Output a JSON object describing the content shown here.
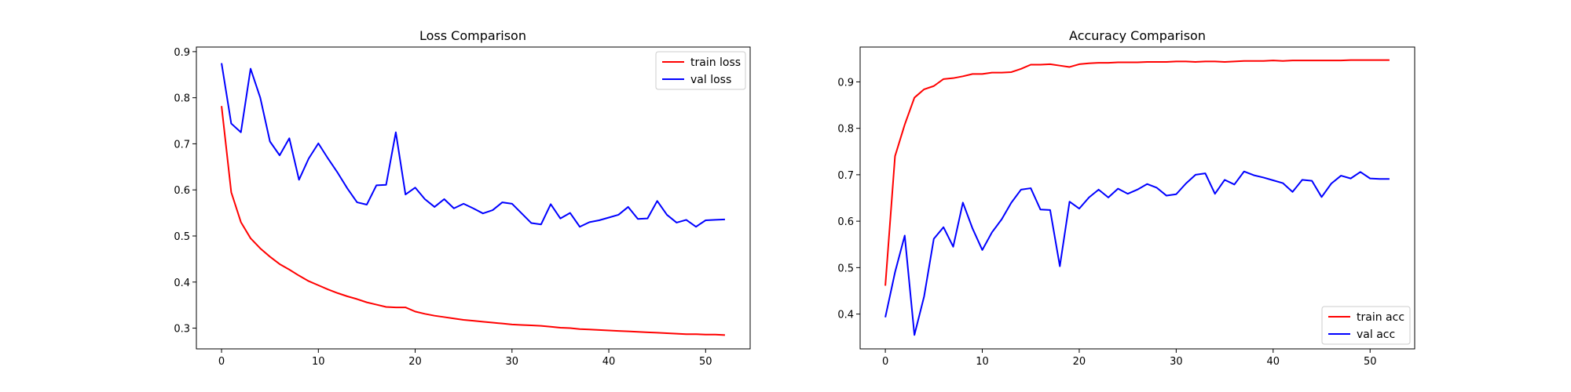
{
  "chart_data": [
    {
      "type": "line",
      "title": "Loss Comparison",
      "xlabel": "",
      "ylabel": "",
      "xlim": [
        -2.6,
        54.6
      ],
      "ylim": [
        0.255,
        0.91
      ],
      "xticks": [
        0,
        10,
        20,
        30,
        40,
        50
      ],
      "yticks": [
        0.3,
        0.4,
        0.5,
        0.6,
        0.7,
        0.8,
        0.9
      ],
      "ytick_labels": [
        "0.3",
        "0.4",
        "0.5",
        "0.6",
        "0.7",
        "0.8",
        "0.9"
      ],
      "grid": false,
      "legend_position": "top-right",
      "x": [
        0,
        1,
        2,
        3,
        4,
        5,
        6,
        7,
        8,
        9,
        10,
        11,
        12,
        13,
        14,
        15,
        16,
        17,
        18,
        19,
        20,
        21,
        22,
        23,
        24,
        25,
        26,
        27,
        28,
        29,
        30,
        31,
        32,
        33,
        34,
        35,
        36,
        37,
        38,
        39,
        40,
        41,
        42,
        43,
        44,
        45,
        46,
        47,
        48,
        49,
        50,
        51,
        52
      ],
      "series": [
        {
          "name": "train loss",
          "color": "#ff0000",
          "values": [
            0.782,
            0.595,
            0.53,
            0.495,
            0.473,
            0.455,
            0.439,
            0.427,
            0.414,
            0.402,
            0.393,
            0.384,
            0.376,
            0.369,
            0.363,
            0.356,
            0.351,
            0.346,
            0.345,
            0.345,
            0.336,
            0.331,
            0.327,
            0.324,
            0.321,
            0.318,
            0.316,
            0.314,
            0.312,
            0.31,
            0.308,
            0.307,
            0.306,
            0.305,
            0.303,
            0.301,
            0.3,
            0.298,
            0.297,
            0.296,
            0.295,
            0.294,
            0.293,
            0.292,
            0.291,
            0.29,
            0.289,
            0.288,
            0.287,
            0.287,
            0.286,
            0.286,
            0.285
          ]
        },
        {
          "name": "val loss",
          "color": "#0000ff",
          "values": [
            0.875,
            0.744,
            0.725,
            0.863,
            0.8,
            0.705,
            0.675,
            0.712,
            0.622,
            0.668,
            0.701,
            0.668,
            0.637,
            0.603,
            0.573,
            0.568,
            0.61,
            0.611,
            0.725,
            0.59,
            0.605,
            0.58,
            0.563,
            0.58,
            0.56,
            0.57,
            0.56,
            0.549,
            0.556,
            0.573,
            0.57,
            0.549,
            0.528,
            0.525,
            0.569,
            0.538,
            0.55,
            0.52,
            0.53,
            0.534,
            0.54,
            0.546,
            0.563,
            0.537,
            0.538,
            0.576,
            0.546,
            0.529,
            0.535,
            0.52,
            0.534,
            0.535,
            0.536
          ]
        }
      ]
    },
    {
      "type": "line",
      "title": "Accuracy Comparison",
      "xlabel": "",
      "ylabel": "",
      "xlim": [
        -2.6,
        54.6
      ],
      "ylim": [
        0.325,
        0.975
      ],
      "xticks": [
        0,
        10,
        20,
        30,
        40,
        50
      ],
      "yticks": [
        0.4,
        0.5,
        0.6,
        0.7,
        0.8,
        0.9
      ],
      "ytick_labels": [
        "0.4",
        "0.5",
        "0.6",
        "0.7",
        "0.8",
        "0.9"
      ],
      "grid": false,
      "legend_position": "bottom-right",
      "x": [
        0,
        1,
        2,
        3,
        4,
        5,
        6,
        7,
        8,
        9,
        10,
        11,
        12,
        13,
        14,
        15,
        16,
        17,
        18,
        19,
        20,
        21,
        22,
        23,
        24,
        25,
        26,
        27,
        28,
        29,
        30,
        31,
        32,
        33,
        34,
        35,
        36,
        37,
        38,
        39,
        40,
        41,
        42,
        43,
        44,
        45,
        46,
        47,
        48,
        49,
        50,
        51,
        52
      ],
      "series": [
        {
          "name": "train acc",
          "color": "#ff0000",
          "values": [
            0.461,
            0.74,
            0.808,
            0.866,
            0.884,
            0.891,
            0.906,
            0.908,
            0.912,
            0.917,
            0.917,
            0.92,
            0.92,
            0.921,
            0.928,
            0.937,
            0.937,
            0.938,
            0.935,
            0.932,
            0.938,
            0.94,
            0.941,
            0.941,
            0.942,
            0.942,
            0.942,
            0.943,
            0.943,
            0.943,
            0.944,
            0.944,
            0.943,
            0.944,
            0.944,
            0.943,
            0.944,
            0.945,
            0.945,
            0.945,
            0.946,
            0.945,
            0.946,
            0.946,
            0.946,
            0.946,
            0.946,
            0.946,
            0.947,
            0.947,
            0.947,
            0.947,
            0.947
          ]
        },
        {
          "name": "val acc",
          "color": "#0000ff",
          "values": [
            0.393,
            0.49,
            0.569,
            0.355,
            0.438,
            0.562,
            0.587,
            0.545,
            0.64,
            0.584,
            0.538,
            0.576,
            0.604,
            0.64,
            0.668,
            0.671,
            0.625,
            0.624,
            0.503,
            0.642,
            0.627,
            0.651,
            0.668,
            0.651,
            0.67,
            0.659,
            0.668,
            0.68,
            0.672,
            0.655,
            0.658,
            0.681,
            0.7,
            0.703,
            0.659,
            0.689,
            0.679,
            0.707,
            0.699,
            0.694,
            0.688,
            0.682,
            0.663,
            0.689,
            0.687,
            0.652,
            0.681,
            0.698,
            0.692,
            0.706,
            0.692,
            0.691,
            0.691
          ]
        }
      ]
    }
  ]
}
